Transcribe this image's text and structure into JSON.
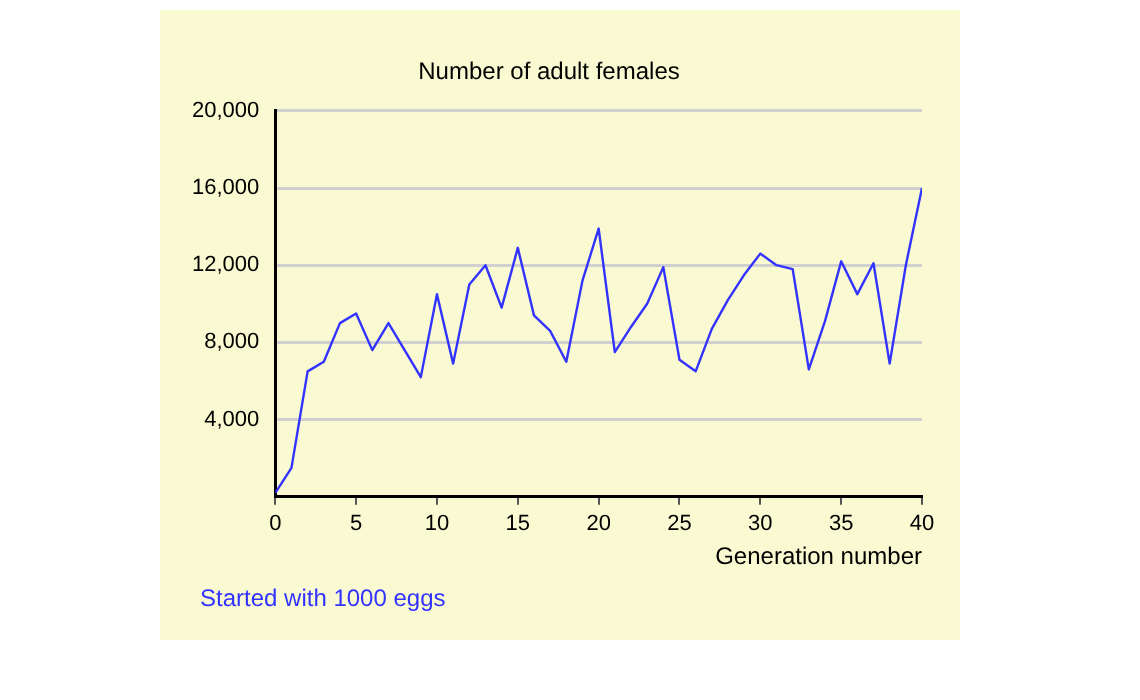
{
  "chart_data": {
    "type": "line",
    "title": "Number of adult females",
    "xlabel": "Generation number",
    "annotations": [
      "Started with 1000 eggs"
    ],
    "x": [
      0,
      1,
      2,
      3,
      4,
      5,
      6,
      7,
      8,
      9,
      10,
      11,
      12,
      13,
      14,
      15,
      16,
      17,
      18,
      19,
      20,
      21,
      22,
      23,
      24,
      25,
      26,
      27,
      28,
      29,
      30,
      31,
      32,
      33,
      34,
      35,
      36,
      37,
      38,
      39,
      40
    ],
    "series": [
      {
        "color": "#3333ff",
        "values": [
          200,
          1500,
          6500,
          7000,
          9000,
          9500,
          7600,
          9000,
          7600,
          6200,
          10500,
          6900,
          11000,
          12000,
          9800,
          12900,
          9400,
          8600,
          7000,
          11200,
          13900,
          7500,
          8800,
          10000,
          11900,
          7100,
          6500,
          8700,
          10200,
          11500,
          12600,
          12000,
          11800,
          6600,
          9100,
          12200,
          10500,
          12100,
          6900,
          12000,
          16000
        ]
      }
    ],
    "xlim": [
      0,
      40
    ],
    "xticks": [
      0,
      5,
      10,
      15,
      20,
      25,
      30,
      35,
      40
    ],
    "ylim": [
      0,
      20000
    ],
    "yticks": [
      {
        "value": 4000,
        "label": "4,000"
      },
      {
        "value": 8000,
        "label": "8,000"
      },
      {
        "value": 12000,
        "label": "12,000"
      },
      {
        "value": 16000,
        "label": "16,000"
      },
      {
        "value": 20000,
        "label": "20,000"
      }
    ],
    "grid": "y",
    "legend": false,
    "marker": "none",
    "line_style": "solid"
  }
}
